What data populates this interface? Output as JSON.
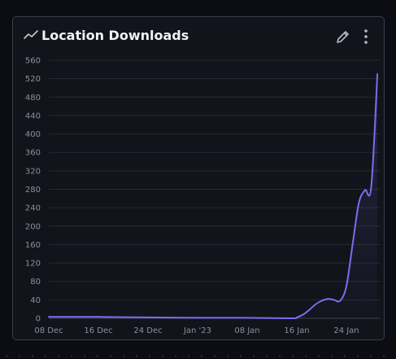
{
  "panel": {
    "title": "Location Downloads",
    "title_icon": "line-chart-icon",
    "edit_icon": "pencil-icon",
    "menu_icon": "kebab-menu-icon"
  },
  "colors": {
    "line": "#7c6cf0",
    "grid": "#262a33",
    "tick_text": "#8b909a",
    "panel_bg": "#11141a",
    "page_bg": "#0b0d12"
  },
  "chart_data": {
    "type": "line",
    "title": "Location Downloads",
    "xlabel": "",
    "ylabel": "",
    "x_ticks": [
      "08 Dec",
      "16 Dec",
      "24 Dec",
      "Jan '23",
      "08 Jan",
      "16 Jan",
      "24 Jan"
    ],
    "y_ticks": [
      0,
      40,
      80,
      120,
      160,
      200,
      240,
      280,
      320,
      360,
      400,
      440,
      480,
      520,
      560
    ],
    "ylim": [
      0,
      560
    ],
    "xlim": [
      "2022-12-08",
      "2023-01-30"
    ],
    "grid": true,
    "legend": "none",
    "series": [
      {
        "x": [
          "2022-12-08",
          "2022-12-16",
          "2022-12-24",
          "2023-01-01",
          "2023-01-08",
          "2023-01-16",
          "2023-01-17",
          "2023-01-18",
          "2023-01-19",
          "2023-01-20",
          "2023-01-21",
          "2023-01-22",
          "2023-01-23",
          "2023-01-24",
          "2023-01-25",
          "2023-01-26",
          "2023-01-27",
          "2023-01-28",
          "2023-01-29",
          "2023-01-30"
        ],
        "y": [
          3,
          3,
          2,
          1,
          1,
          0,
          2,
          8,
          18,
          30,
          38,
          42,
          40,
          38,
          70,
          160,
          250,
          278,
          285,
          530
        ]
      }
    ]
  }
}
